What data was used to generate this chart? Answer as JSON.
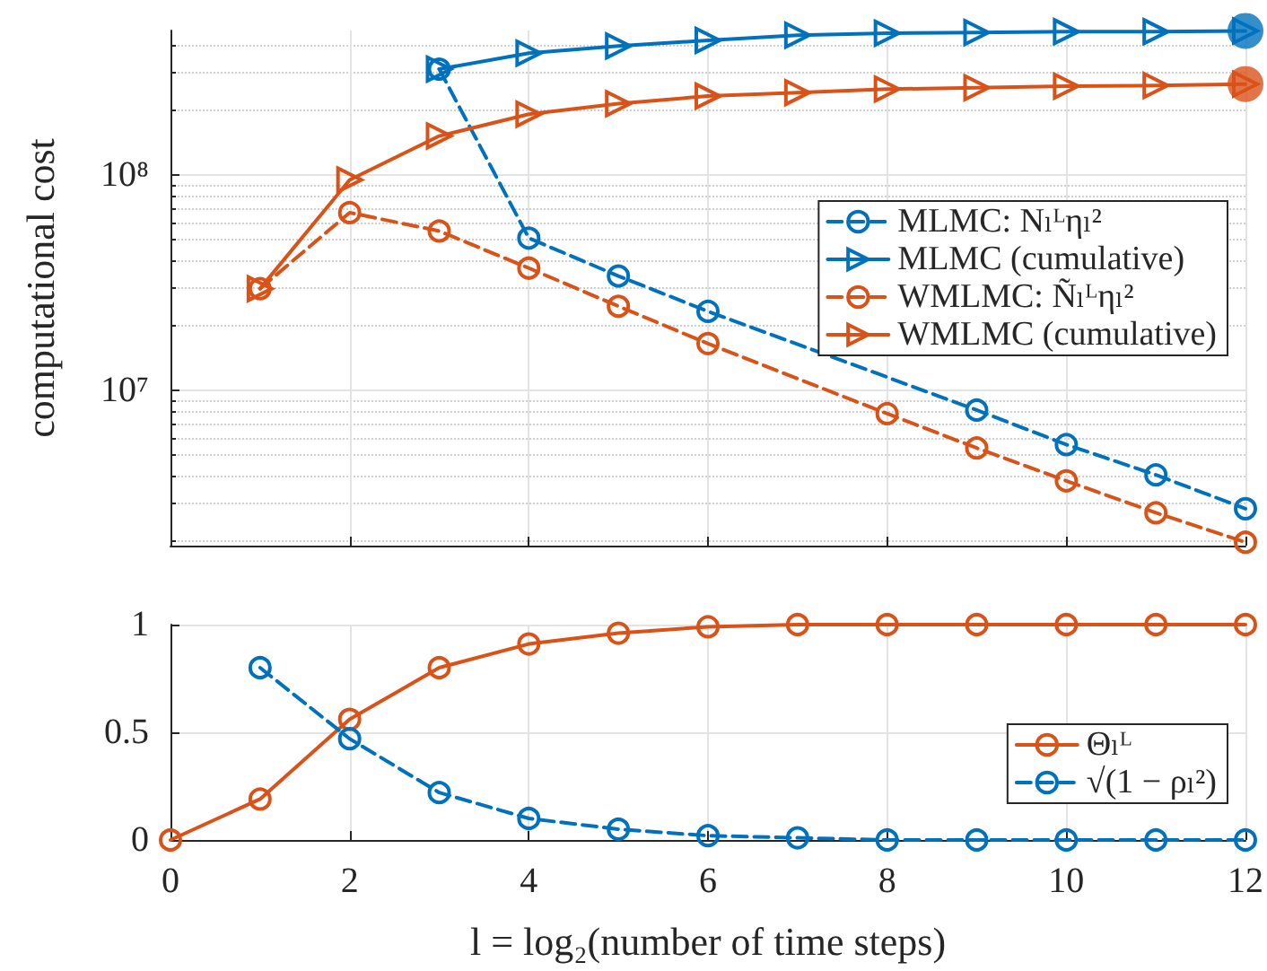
{
  "chart_data": [
    {
      "type": "line",
      "ylabel": "computational cost",
      "x": [
        1,
        2,
        3,
        4,
        5,
        6,
        7,
        8,
        9,
        10,
        11,
        12
      ],
      "xlim": [
        0,
        12
      ],
      "xticks": [
        {
          "value": 0,
          "label": null
        },
        {
          "value": 2,
          "label": null
        },
        {
          "value": 4,
          "label": null
        },
        {
          "value": 6,
          "label": null
        },
        {
          "value": 8,
          "label": null
        },
        {
          "value": 10,
          "label": null
        },
        {
          "value": 12,
          "label": null
        }
      ],
      "ylim": [
        1900000,
        470000000
      ],
      "yticks": [
        {
          "value": 10000000,
          "label": "10⁷"
        },
        {
          "value": 100000000,
          "label": "10⁸"
        }
      ],
      "log": "y",
      "grid": true,
      "legend": "right",
      "tick_labels": "y",
      "series": [
        {
          "name": "MLMC: Nₗᴸηₗ²",
          "color": "#0072bd",
          "marker": "circle",
          "line_style": "dashed",
          "values": [
            null,
            null,
            311000000,
            51000000,
            34000000,
            23300000,
            null,
            null,
            8100000,
            5600000,
            4050000,
            2820000
          ]
        },
        {
          "name": "MLMC (cumulative)",
          "color": "#0072bd",
          "marker": "triangle",
          "line_style": "solid",
          "values": [
            null,
            null,
            311000000,
            369000000,
            398000000,
            423000000,
            447000000,
            457000000,
            460000000,
            464000000,
            464000000,
            468000000
          ]
        },
        {
          "name": "WMLMC: Ñₗᴸηₗ²",
          "color": "#d95319",
          "marker": "circle",
          "line_style": "dashed",
          "values": [
            29700000,
            67000000,
            55000000,
            37000000,
            24600000,
            16500000,
            null,
            7800000,
            5400000,
            3800000,
            2700000,
            1970000
          ]
        },
        {
          "name": "WMLMC (cumulative)",
          "color": "#d95319",
          "marker": "triangle",
          "line_style": "solid",
          "values": [
            29700000,
            95000000,
            152000000,
            192000000,
            215000000,
            233000000,
            242000000,
            251000000,
            255000000,
            259000000,
            261000000,
            265000000
          ]
        },
        {
          "type": "scatter",
          "color": "#0072bd",
          "marker": "circle",
          "x": [
            12
          ],
          "values": [
            468000000
          ]
        },
        {
          "type": "scatter",
          "color": "#d95319",
          "marker": "circle",
          "x": [
            12
          ],
          "values": [
            265000000
          ]
        }
      ]
    },
    {
      "type": "line",
      "xlabel": "l = log₂(number of time steps)",
      "x": [
        0,
        1,
        2,
        3,
        4,
        5,
        6,
        7,
        8,
        9,
        10,
        11,
        12
      ],
      "xlim": [
        0,
        12
      ],
      "xticks": [
        0,
        2,
        4,
        6,
        8,
        10,
        12
      ],
      "ylim": [
        0,
        1
      ],
      "yticks": [
        0,
        0.5,
        1
      ],
      "grid": true,
      "legend": "right",
      "series": [
        {
          "name": "Θₗᴸ",
          "color": "#d95319",
          "marker": "circle",
          "line_style": "solid",
          "values": [
            0,
            0.19,
            0.56,
            0.8,
            0.91,
            0.96,
            0.99,
            1,
            1,
            1,
            1,
            1,
            1
          ]
        },
        {
          "name": "√(1 − ρₗ²)",
          "color": "#0072bd",
          "marker": "circle",
          "line_style": "dashed",
          "values": [
            null,
            0.8,
            0.47,
            0.22,
            0.1,
            0.05,
            0.02,
            0.01,
            0,
            0,
            0,
            0,
            0
          ]
        }
      ]
    }
  ]
}
